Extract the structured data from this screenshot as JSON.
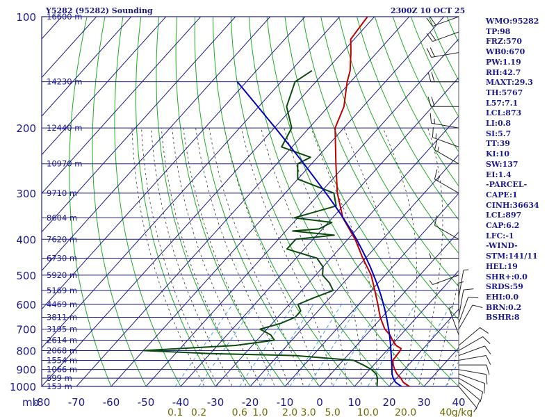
{
  "header": {
    "title": "Y5282 (95282) Sounding",
    "valid_time": "2300Z 10 OCT 25"
  },
  "side_panel": {
    "lines": [
      "WMO:95282",
      "TP:98",
      "FRZ:570",
      "WB0:670",
      "PW:1.19",
      "RH:42.7",
      "MAXT:29.3",
      "TH:5767",
      "L57:7.1",
      "LCL:873",
      "LI:0.8",
      "SI:5.7",
      "TT:39",
      "KI:10",
      "SW:137",
      "EI:1.4",
      "-PARCEL-",
      "CAPE:1",
      "CINH:36634",
      "LCL:897",
      "CAP:6.2",
      "LFC:-1",
      "-WIND-",
      "STM:141/11",
      "HEL:19",
      "SHR+:0.0",
      "SRDS:59",
      "EHI:0.0",
      "BRN:0.2",
      "BSHR:8"
    ]
  },
  "colors": {
    "grid": "#1a1a8c",
    "isotherm": "#1a1a8c",
    "dry_adiabat": "#22aa22",
    "moist_adiabat": "#444444",
    "mixing_ratio": "#4aa0e0",
    "temperature": "#c00000",
    "dewpoint": "#0a4a0a",
    "parcel": "#0000c0",
    "mixing_ratio_labels": "#6b6b00",
    "wind_barbs": "#222222"
  },
  "chart_data": {
    "type": "skew-t",
    "x_axis": {
      "unit_label": "mb",
      "ticks": [
        -80,
        -70,
        -60,
        -50,
        -40,
        -30,
        -20,
        -10,
        0,
        10,
        20,
        30,
        40
      ],
      "tick_labels": [
        "-80",
        "-70",
        "-60",
        "-50",
        "-40",
        "-30",
        "-20",
        "-10",
        "0",
        "10",
        "20",
        "30",
        "40"
      ],
      "xlim": [
        -80,
        40
      ]
    },
    "y_axis": {
      "scale": "log",
      "pressure_ticks": [
        100,
        200,
        300,
        400,
        500,
        600,
        700,
        800,
        900,
        1000
      ],
      "ylim": [
        1000,
        100
      ]
    },
    "height_labels": [
      {
        "p": 100,
        "text": "16600 m"
      },
      {
        "p": 150,
        "text": "14230 m"
      },
      {
        "p": 200,
        "text": "12440 m"
      },
      {
        "p": 250,
        "text": "10970 m"
      },
      {
        "p": 300,
        "text": "9710 m"
      },
      {
        "p": 350,
        "text": "8604 m"
      },
      {
        "p": 400,
        "text": "7620 m"
      },
      {
        "p": 450,
        "text": "6730 m"
      },
      {
        "p": 500,
        "text": "5920 m"
      },
      {
        "p": 550,
        "text": "5169 m"
      },
      {
        "p": 600,
        "text": "4469 m"
      },
      {
        "p": 650,
        "text": "3811 m"
      },
      {
        "p": 700,
        "text": "3195 m"
      },
      {
        "p": 750,
        "text": "2614 m"
      },
      {
        "p": 800,
        "text": "2068 m"
      },
      {
        "p": 850,
        "text": "1554 m"
      },
      {
        "p": 900,
        "text": "1066 m"
      },
      {
        "p": 950,
        "text": "599 m"
      },
      {
        "p": 1000,
        "text": "153 m"
      }
    ],
    "mixing_ratio_labels": [
      "0.1",
      "0.2",
      "0.6",
      "1.0",
      "2.0",
      "3.0",
      "5.0",
      "10.0",
      "20.0",
      "40",
      "g/kg"
    ],
    "mixing_ratio_values": [
      0.1,
      0.2,
      0.6,
      1.0,
      2.0,
      3.0,
      5.0,
      10.0,
      20.0,
      40.0
    ],
    "series": [
      {
        "name": "temperature",
        "pressure": [
          1010,
          1000,
          975,
          950,
          925,
          900,
          875,
          850,
          825,
          800,
          790,
          775,
          750,
          725,
          700,
          650,
          600,
          550,
          500,
          450,
          400,
          350,
          300,
          250,
          200,
          175,
          150,
          140,
          125,
          115,
          100
        ],
        "values": [
          26.2,
          25.8,
          23.0,
          21.2,
          19.0,
          17.2,
          15.6,
          14.3,
          14.1,
          13.9,
          13.6,
          11.4,
          9.0,
          6.8,
          3.9,
          -0.5,
          -4.5,
          -9.0,
          -14.0,
          -20.8,
          -27.9,
          -37.0,
          -45.0,
          -53.0,
          -62.5,
          -65.5,
          -71.0,
          -73.0,
          -77.5,
          -81.0,
          -82.0
        ]
      },
      {
        "name": "dewpoint",
        "pressure": [
          1000,
          975,
          950,
          925,
          900,
          875,
          850,
          825,
          815,
          800,
          775,
          750,
          725,
          700,
          675,
          650,
          625,
          600,
          575,
          550,
          525,
          500,
          475,
          450,
          425,
          400,
          390,
          380,
          375,
          360,
          350,
          325,
          300,
          275,
          250,
          240,
          225,
          200,
          175,
          150,
          140
        ],
        "values": [
          16.5,
          15.5,
          14.5,
          13.0,
          10.5,
          7.0,
          3.0,
          -15.0,
          -40.0,
          -60.0,
          -35.0,
          -25.0,
          -27.5,
          -32.0,
          -27.5,
          -25.0,
          -25.0,
          -27.5,
          -24.5,
          -21.0,
          -24.0,
          -28.0,
          -30.0,
          -34.0,
          -45.0,
          -45.0,
          -35.0,
          -48.0,
          -41.0,
          -39.0,
          -51.0,
          -42.0,
          -46.0,
          -60.0,
          -64.0,
          -62.0,
          -73.0,
          -75.0,
          -82.0,
          -86.0,
          -84.0
        ]
      },
      {
        "name": "parcel",
        "pressure": [
          1000,
          975,
          950,
          925,
          900,
          875,
          850,
          825,
          800,
          775,
          750,
          725,
          700,
          675,
          650,
          625,
          600,
          575,
          550,
          525,
          500,
          475,
          450,
          425,
          400,
          375,
          350,
          325,
          300,
          275,
          250,
          225,
          200,
          175,
          150
        ],
        "values": [
          23.5,
          20.8,
          19.0,
          17.6,
          16.4,
          15.2,
          13.9,
          12.6,
          11.2,
          9.8,
          8.3,
          6.7,
          5.0,
          3.2,
          1.3,
          -0.7,
          -2.9,
          -5.2,
          -7.7,
          -10.4,
          -13.3,
          -16.4,
          -19.8,
          -23.5,
          -27.5,
          -32.0,
          -36.9,
          -42.3,
          -48.3,
          -54.9,
          -62.2,
          -70.4,
          -79.7,
          -90.3,
          -102.6
        ]
      }
    ],
    "wind_barbs": [
      {
        "p": 1000,
        "dir": 140,
        "spd": 5
      },
      {
        "p": 975,
        "dir": 130,
        "spd": 10
      },
      {
        "p": 950,
        "dir": 120,
        "spd": 10
      },
      {
        "p": 925,
        "dir": 110,
        "spd": 10
      },
      {
        "p": 900,
        "dir": 100,
        "spd": 10
      },
      {
        "p": 875,
        "dir": 90,
        "spd": 10
      },
      {
        "p": 850,
        "dir": 80,
        "spd": 10
      },
      {
        "p": 825,
        "dir": 70,
        "spd": 10
      },
      {
        "p": 800,
        "dir": 60,
        "spd": 10
      },
      {
        "p": 775,
        "dir": 50,
        "spd": 10
      },
      {
        "p": 725,
        "dir": 340,
        "spd": 5
      },
      {
        "p": 700,
        "dir": 30,
        "spd": 10
      },
      {
        "p": 675,
        "dir": 20,
        "spd": 10
      },
      {
        "p": 650,
        "dir": 10,
        "spd": 10
      },
      {
        "p": 625,
        "dir": 0,
        "spd": 5
      },
      {
        "p": 575,
        "dir": 10,
        "spd": 5
      },
      {
        "p": 500,
        "dir": 250,
        "spd": 5
      },
      {
        "p": 450,
        "dir": 270,
        "spd": 5
      },
      {
        "p": 400,
        "dir": 300,
        "spd": 10
      },
      {
        "p": 300,
        "dir": 300,
        "spd": 15
      },
      {
        "p": 250,
        "dir": 300,
        "spd": 15
      },
      {
        "p": 225,
        "dir": 290,
        "spd": 15
      },
      {
        "p": 200,
        "dir": 280,
        "spd": 15
      },
      {
        "p": 175,
        "dir": 270,
        "spd": 20
      },
      {
        "p": 150,
        "dir": 270,
        "spd": 20
      },
      {
        "p": 125,
        "dir": 260,
        "spd": 20
      },
      {
        "p": 110,
        "dir": 250,
        "spd": 20
      },
      {
        "p": 100,
        "dir": 250,
        "spd": 20
      }
    ]
  }
}
